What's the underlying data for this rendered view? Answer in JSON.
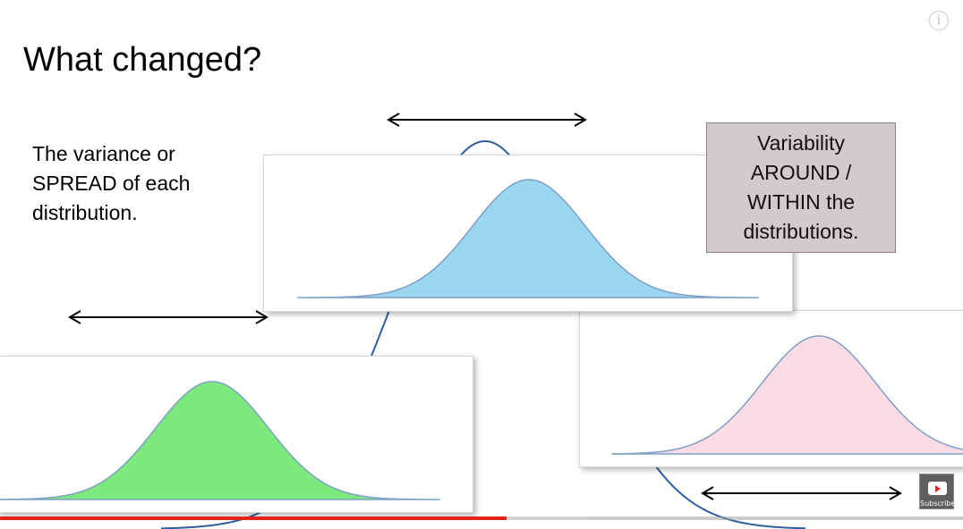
{
  "slide": {
    "title": "What changed?",
    "left_text": [
      "The variance or",
      "SPREAD of each",
      "distribution."
    ],
    "callout_text": [
      "Variability",
      "AROUND /",
      "WITHIN the",
      "distributions."
    ]
  },
  "colors": {
    "blue_fill": "#9ad6ee",
    "green_fill": "#7ce87d",
    "pink_fill": "#fbdbe4",
    "curve_stroke": "#7f9fc6",
    "background_curve": "#2d5f9e",
    "callout_bg": "#d2cbcb",
    "progress_played": "#e1251b"
  },
  "player": {
    "info_icon": "i",
    "subscribe_label": "Subscribe",
    "progress_played_fraction": 0.526,
    "progress_buffered_fraction": 0.609
  }
}
